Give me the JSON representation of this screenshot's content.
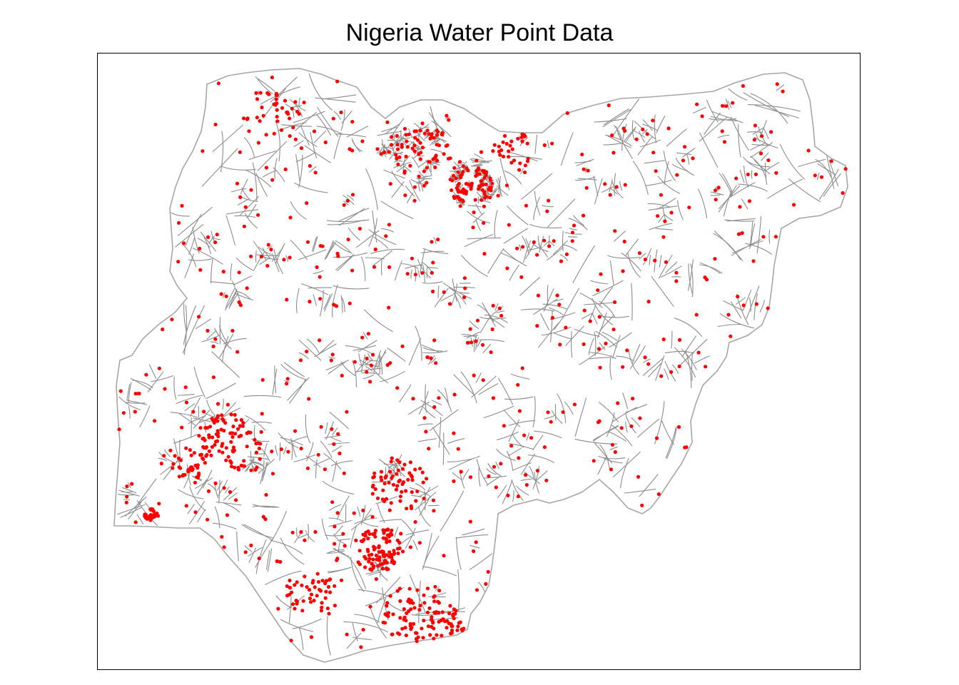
{
  "title": "Nigeria Water Point Data",
  "colors": {
    "point": "#ff0000",
    "boundary": "#8c8c8c",
    "outline": "#a6a6a6",
    "frame": "#000000",
    "background": "#ffffff"
  },
  "legend": "none"
}
